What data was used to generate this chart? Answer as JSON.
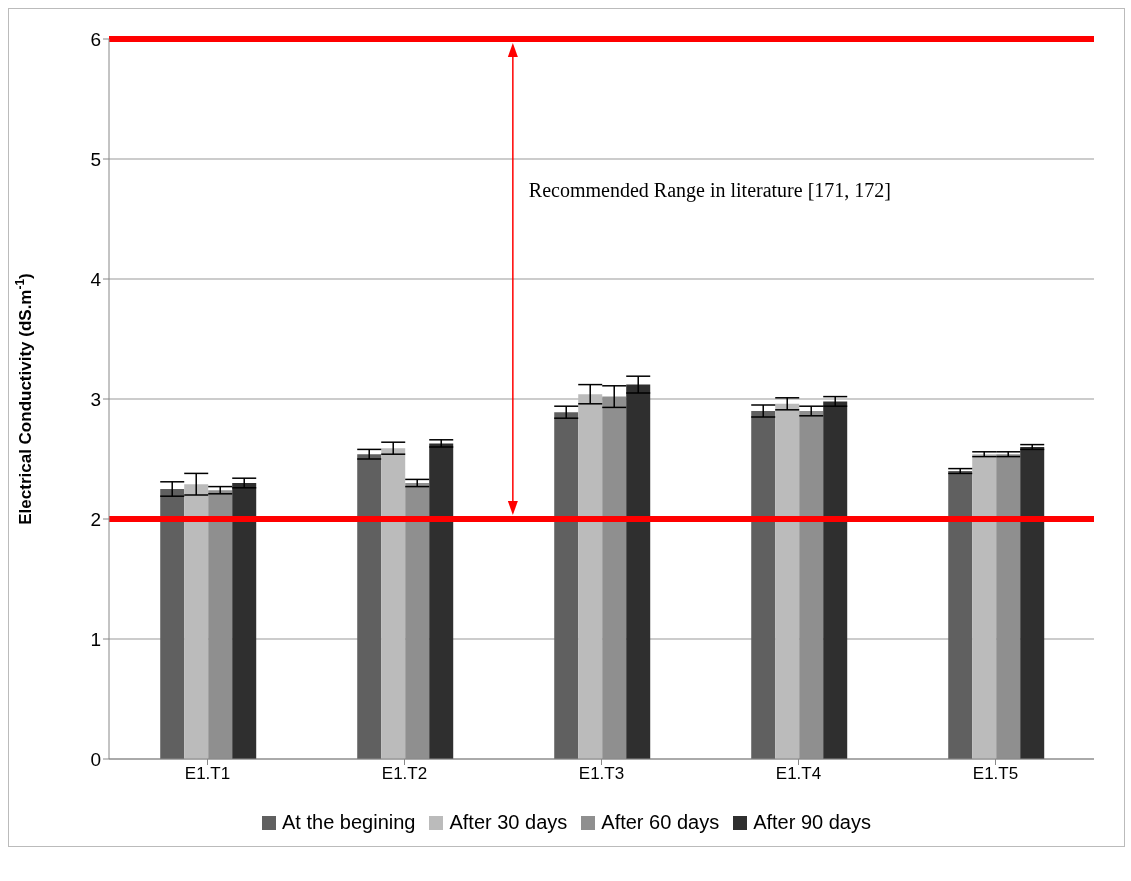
{
  "chart_data": {
    "type": "bar",
    "ylabel": "Electrical Conductivity (dS.m$^{-1}$)",
    "categories": [
      "E1.T1",
      "E1.T2",
      "E1.T3",
      "E1.T4",
      "E1.T5"
    ],
    "series": [
      {
        "name": "At the begining",
        "color": "#606060",
        "values": [
          2.25,
          2.54,
          2.89,
          2.9,
          2.4
        ],
        "errors": [
          0.06,
          0.04,
          0.05,
          0.05,
          0.02
        ]
      },
      {
        "name": "After 30 days",
        "color": "#bbbbbb",
        "values": [
          2.29,
          2.59,
          3.04,
          2.96,
          2.54
        ],
        "errors": [
          0.09,
          0.05,
          0.08,
          0.05,
          0.02
        ]
      },
      {
        "name": "After 60 days",
        "color": "#8f8f8f",
        "values": [
          2.24,
          2.3,
          3.02,
          2.9,
          2.54
        ],
        "errors": [
          0.03,
          0.03,
          0.09,
          0.04,
          0.02
        ]
      },
      {
        "name": "After 90 days",
        "color": "#2f2f2f",
        "values": [
          2.3,
          2.63,
          3.12,
          2.98,
          2.6
        ],
        "errors": [
          0.04,
          0.03,
          0.07,
          0.04,
          0.02
        ]
      }
    ],
    "ylim": [
      0,
      6
    ],
    "yticks": [
      0,
      1,
      2,
      3,
      4,
      5,
      6
    ],
    "grid": "y",
    "legend": "bottom",
    "ref_lines": [
      {
        "axis": "y",
        "value": 2,
        "color": "#ff0000"
      },
      {
        "axis": "y",
        "value": 6,
        "color": "#ff0000"
      }
    ],
    "annotations": [
      "Recommended Range in literature [171, 172]"
    ]
  }
}
